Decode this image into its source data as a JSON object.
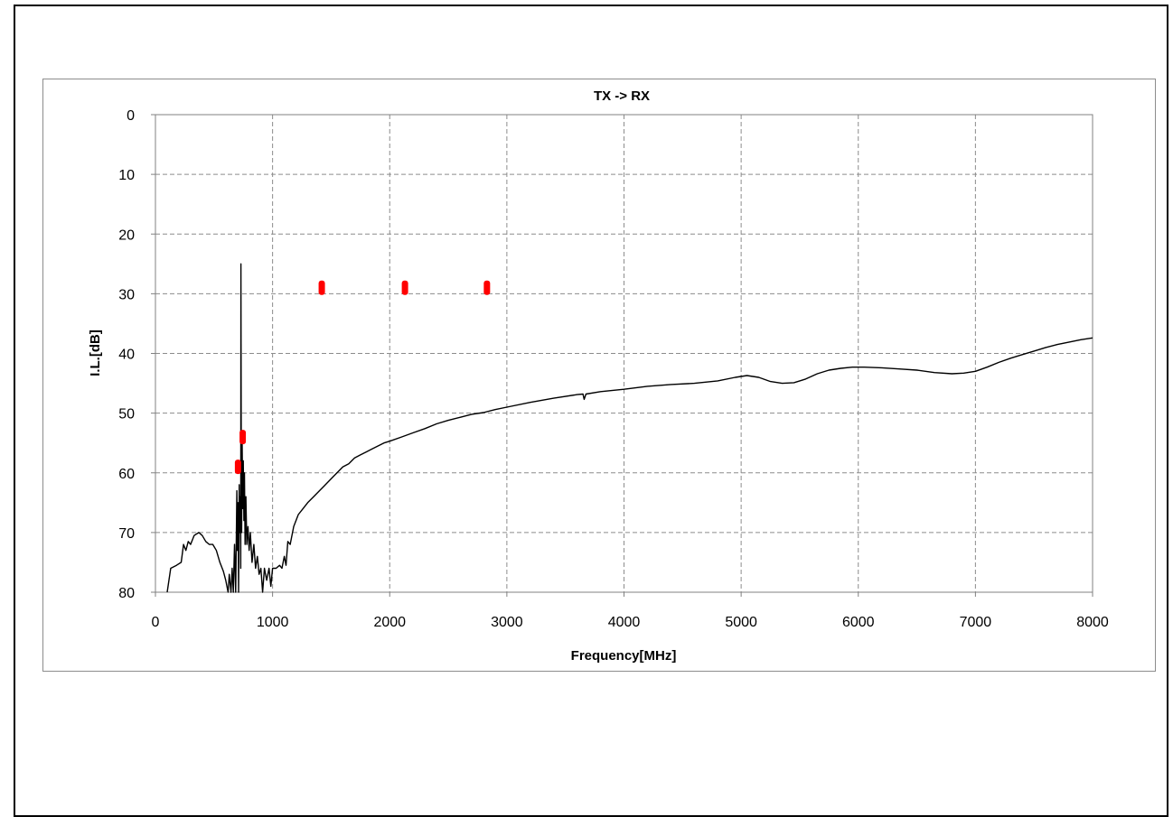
{
  "chart_data": {
    "type": "line",
    "title": "TX -> RX",
    "xlabel": "Frequency[MHz]",
    "ylabel": "I.L.[dB]",
    "xlim": [
      0,
      8000
    ],
    "ylim": [
      80,
      0
    ],
    "y_axis_reversed": true,
    "grid": true,
    "legend": "none",
    "x_ticks": [
      "0",
      "1000",
      "2000",
      "3000",
      "4000",
      "5000",
      "6000",
      "7000",
      "8000"
    ],
    "y_ticks": [
      "0",
      "10",
      "20",
      "30",
      "40",
      "50",
      "60",
      "70",
      "80"
    ],
    "series": [
      {
        "type": "line",
        "color": "#000000",
        "points": [
          [
            100,
            80
          ],
          [
            130,
            76
          ],
          [
            180,
            75.5
          ],
          [
            220,
            75
          ],
          [
            240,
            72
          ],
          [
            260,
            73
          ],
          [
            280,
            71.5
          ],
          [
            300,
            72
          ],
          [
            330,
            70.5
          ],
          [
            370,
            70
          ],
          [
            400,
            70.5
          ],
          [
            430,
            71.5
          ],
          [
            460,
            72
          ],
          [
            490,
            72
          ],
          [
            520,
            73
          ],
          [
            550,
            75
          ],
          [
            580,
            76.5
          ],
          [
            600,
            78
          ],
          [
            620,
            80
          ],
          [
            630,
            77
          ],
          [
            645,
            80
          ],
          [
            655,
            76
          ],
          [
            665,
            80
          ],
          [
            675,
            72
          ],
          [
            685,
            80
          ],
          [
            695,
            63
          ],
          [
            700,
            73
          ],
          [
            705,
            65
          ],
          [
            710,
            80
          ],
          [
            715,
            62
          ],
          [
            720,
            70
          ],
          [
            725,
            64
          ],
          [
            728,
            76
          ],
          [
            730,
            25
          ],
          [
            733,
            60
          ],
          [
            736,
            70
          ],
          [
            740,
            54
          ],
          [
            745,
            66
          ],
          [
            750,
            58
          ],
          [
            755,
            68
          ],
          [
            760,
            60
          ],
          [
            765,
            72
          ],
          [
            772,
            64
          ],
          [
            780,
            72
          ],
          [
            790,
            69
          ],
          [
            800,
            73
          ],
          [
            810,
            70
          ],
          [
            825,
            75
          ],
          [
            840,
            72
          ],
          [
            855,
            76
          ],
          [
            870,
            74
          ],
          [
            885,
            77
          ],
          [
            900,
            76
          ],
          [
            915,
            80
          ],
          [
            930,
            76
          ],
          [
            950,
            78
          ],
          [
            970,
            76
          ],
          [
            985,
            79
          ],
          [
            1000,
            76
          ],
          [
            1030,
            76
          ],
          [
            1060,
            75.5
          ],
          [
            1080,
            76
          ],
          [
            1100,
            74
          ],
          [
            1115,
            75.5
          ],
          [
            1130,
            71.5
          ],
          [
            1150,
            72
          ],
          [
            1180,
            69
          ],
          [
            1220,
            67
          ],
          [
            1260,
            66
          ],
          [
            1300,
            65
          ],
          [
            1350,
            64
          ],
          [
            1400,
            63
          ],
          [
            1450,
            62
          ],
          [
            1500,
            61
          ],
          [
            1550,
            60
          ],
          [
            1600,
            59
          ],
          [
            1650,
            58.5
          ],
          [
            1700,
            57.5
          ],
          [
            1750,
            57
          ],
          [
            1800,
            56.5
          ],
          [
            1850,
            56
          ],
          [
            1900,
            55.5
          ],
          [
            1950,
            55
          ],
          [
            2000,
            54.7
          ],
          [
            2100,
            54
          ],
          [
            2200,
            53.3
          ],
          [
            2300,
            52.6
          ],
          [
            2400,
            51.8
          ],
          [
            2500,
            51.2
          ],
          [
            2600,
            50.7
          ],
          [
            2700,
            50.2
          ],
          [
            2800,
            49.9
          ],
          [
            2900,
            49.4
          ],
          [
            3000,
            49
          ],
          [
            3200,
            48.2
          ],
          [
            3400,
            47.5
          ],
          [
            3600,
            46.9
          ],
          [
            3650,
            46.8
          ],
          [
            3660,
            47.7
          ],
          [
            3675,
            46.8
          ],
          [
            3800,
            46.4
          ],
          [
            4000,
            46
          ],
          [
            4200,
            45.5
          ],
          [
            4400,
            45.2
          ],
          [
            4600,
            45
          ],
          [
            4800,
            44.6
          ],
          [
            4950,
            44
          ],
          [
            5050,
            43.7
          ],
          [
            5150,
            44
          ],
          [
            5250,
            44.7
          ],
          [
            5350,
            45
          ],
          [
            5450,
            44.9
          ],
          [
            5550,
            44.3
          ],
          [
            5650,
            43.4
          ],
          [
            5750,
            42.8
          ],
          [
            5850,
            42.5
          ],
          [
            5950,
            42.3
          ],
          [
            6050,
            42.3
          ],
          [
            6200,
            42.4
          ],
          [
            6350,
            42.6
          ],
          [
            6500,
            42.8
          ],
          [
            6650,
            43.2
          ],
          [
            6800,
            43.4
          ],
          [
            6900,
            43.3
          ],
          [
            7000,
            43
          ],
          [
            7100,
            42.3
          ],
          [
            7200,
            41.5
          ],
          [
            7300,
            40.8
          ],
          [
            7400,
            40.2
          ],
          [
            7500,
            39.6
          ],
          [
            7600,
            39
          ],
          [
            7700,
            38.5
          ],
          [
            7800,
            38.1
          ],
          [
            7900,
            37.7
          ],
          [
            8000,
            37.4
          ]
        ]
      },
      {
        "type": "scatter",
        "color": "#ff0000",
        "points": [
          [
            705,
            59
          ],
          [
            745,
            54
          ],
          [
            1420,
            29
          ],
          [
            2130,
            29
          ],
          [
            2830,
            29
          ]
        ]
      }
    ]
  }
}
